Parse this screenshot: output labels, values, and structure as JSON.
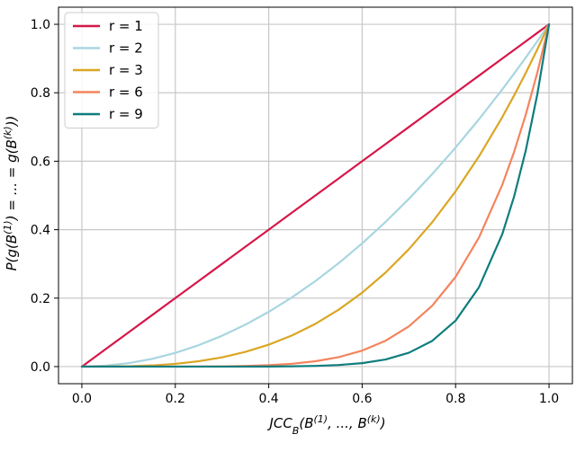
{
  "chart_data": {
    "type": "line",
    "xlabel": "JCC_B(B^(1), ..., B^(k))",
    "xlabel_parts": {
      "main": "JCC",
      "sub": "B",
      "args": "(B",
      "sup1": "(1)",
      "mid": ", ..., B",
      "supk": "(k)",
      "end": ")"
    },
    "ylabel": "P(g(B^(1)) = ... = g(B^(k)))",
    "ylabel_parts": {
      "a": "P(g(B",
      "sup1": "(1)",
      "b": ") = ... = g(B",
      "supk": "(k)",
      "c": "))"
    },
    "xlim": [
      -0.05,
      1.05
    ],
    "ylim": [
      -0.05,
      1.05
    ],
    "xticks": [
      0.0,
      0.2,
      0.4,
      0.6,
      0.8,
      1.0
    ],
    "yticks": [
      0.0,
      0.2,
      0.4,
      0.6,
      0.8,
      1.0
    ],
    "xtick_labels": [
      "0.0",
      "0.2",
      "0.4",
      "0.6",
      "0.8",
      "1.0"
    ],
    "ytick_labels": [
      "0.0",
      "0.2",
      "0.4",
      "0.6",
      "0.8",
      "1.0"
    ],
    "grid": true,
    "legend_position": "top-left",
    "x": [
      0.0,
      0.05,
      0.1,
      0.15,
      0.2,
      0.25,
      0.3,
      0.35,
      0.4,
      0.45,
      0.5,
      0.55,
      0.6,
      0.65,
      0.7,
      0.75,
      0.8,
      0.85,
      0.9,
      0.925,
      0.95,
      0.975,
      1.0
    ],
    "series": [
      {
        "name": "r = 1",
        "color": "#d6174a",
        "values": [
          0.0,
          0.05,
          0.1,
          0.15,
          0.2,
          0.25,
          0.3,
          0.35,
          0.4,
          0.45,
          0.5,
          0.55,
          0.6,
          0.65,
          0.7,
          0.75,
          0.8,
          0.85,
          0.9,
          0.925,
          0.95,
          0.975,
          1.0
        ]
      },
      {
        "name": "r = 2",
        "color": "#a8d6e0",
        "values": [
          0.0,
          0.0025,
          0.01,
          0.0225,
          0.04,
          0.0625,
          0.09,
          0.1225,
          0.16,
          0.2025,
          0.25,
          0.3025,
          0.36,
          0.4225,
          0.49,
          0.5625,
          0.64,
          0.7225,
          0.81,
          0.8556,
          0.9025,
          0.9506,
          1.0
        ]
      },
      {
        "name": "r = 3",
        "color": "#dba624",
        "values": [
          0.0,
          0.0001,
          0.001,
          0.0034,
          0.008,
          0.0156,
          0.027,
          0.0429,
          0.064,
          0.0911,
          0.125,
          0.1664,
          0.216,
          0.2746,
          0.343,
          0.4219,
          0.512,
          0.6141,
          0.729,
          0.7915,
          0.8574,
          0.9269,
          1.0
        ]
      },
      {
        "name": "r = 6",
        "color": "#f4845d",
        "values": [
          0.0,
          0.0,
          0.0,
          0.0,
          0.0001,
          0.0002,
          0.0007,
          0.0018,
          0.0041,
          0.0083,
          0.0156,
          0.0277,
          0.0467,
          0.0754,
          0.1176,
          0.178,
          0.2621,
          0.3771,
          0.5314,
          0.6264,
          0.7351,
          0.8591,
          1.0
        ]
      },
      {
        "name": "r = 9",
        "color": "#0f7d7d",
        "values": [
          0.0,
          0.0,
          0.0,
          0.0,
          0.0,
          0.0,
          0.0,
          0.0001,
          0.0003,
          0.0008,
          0.002,
          0.0046,
          0.0101,
          0.0207,
          0.0404,
          0.0751,
          0.1342,
          0.2316,
          0.3874,
          0.4958,
          0.6302,
          0.7962,
          1.0
        ]
      }
    ]
  }
}
